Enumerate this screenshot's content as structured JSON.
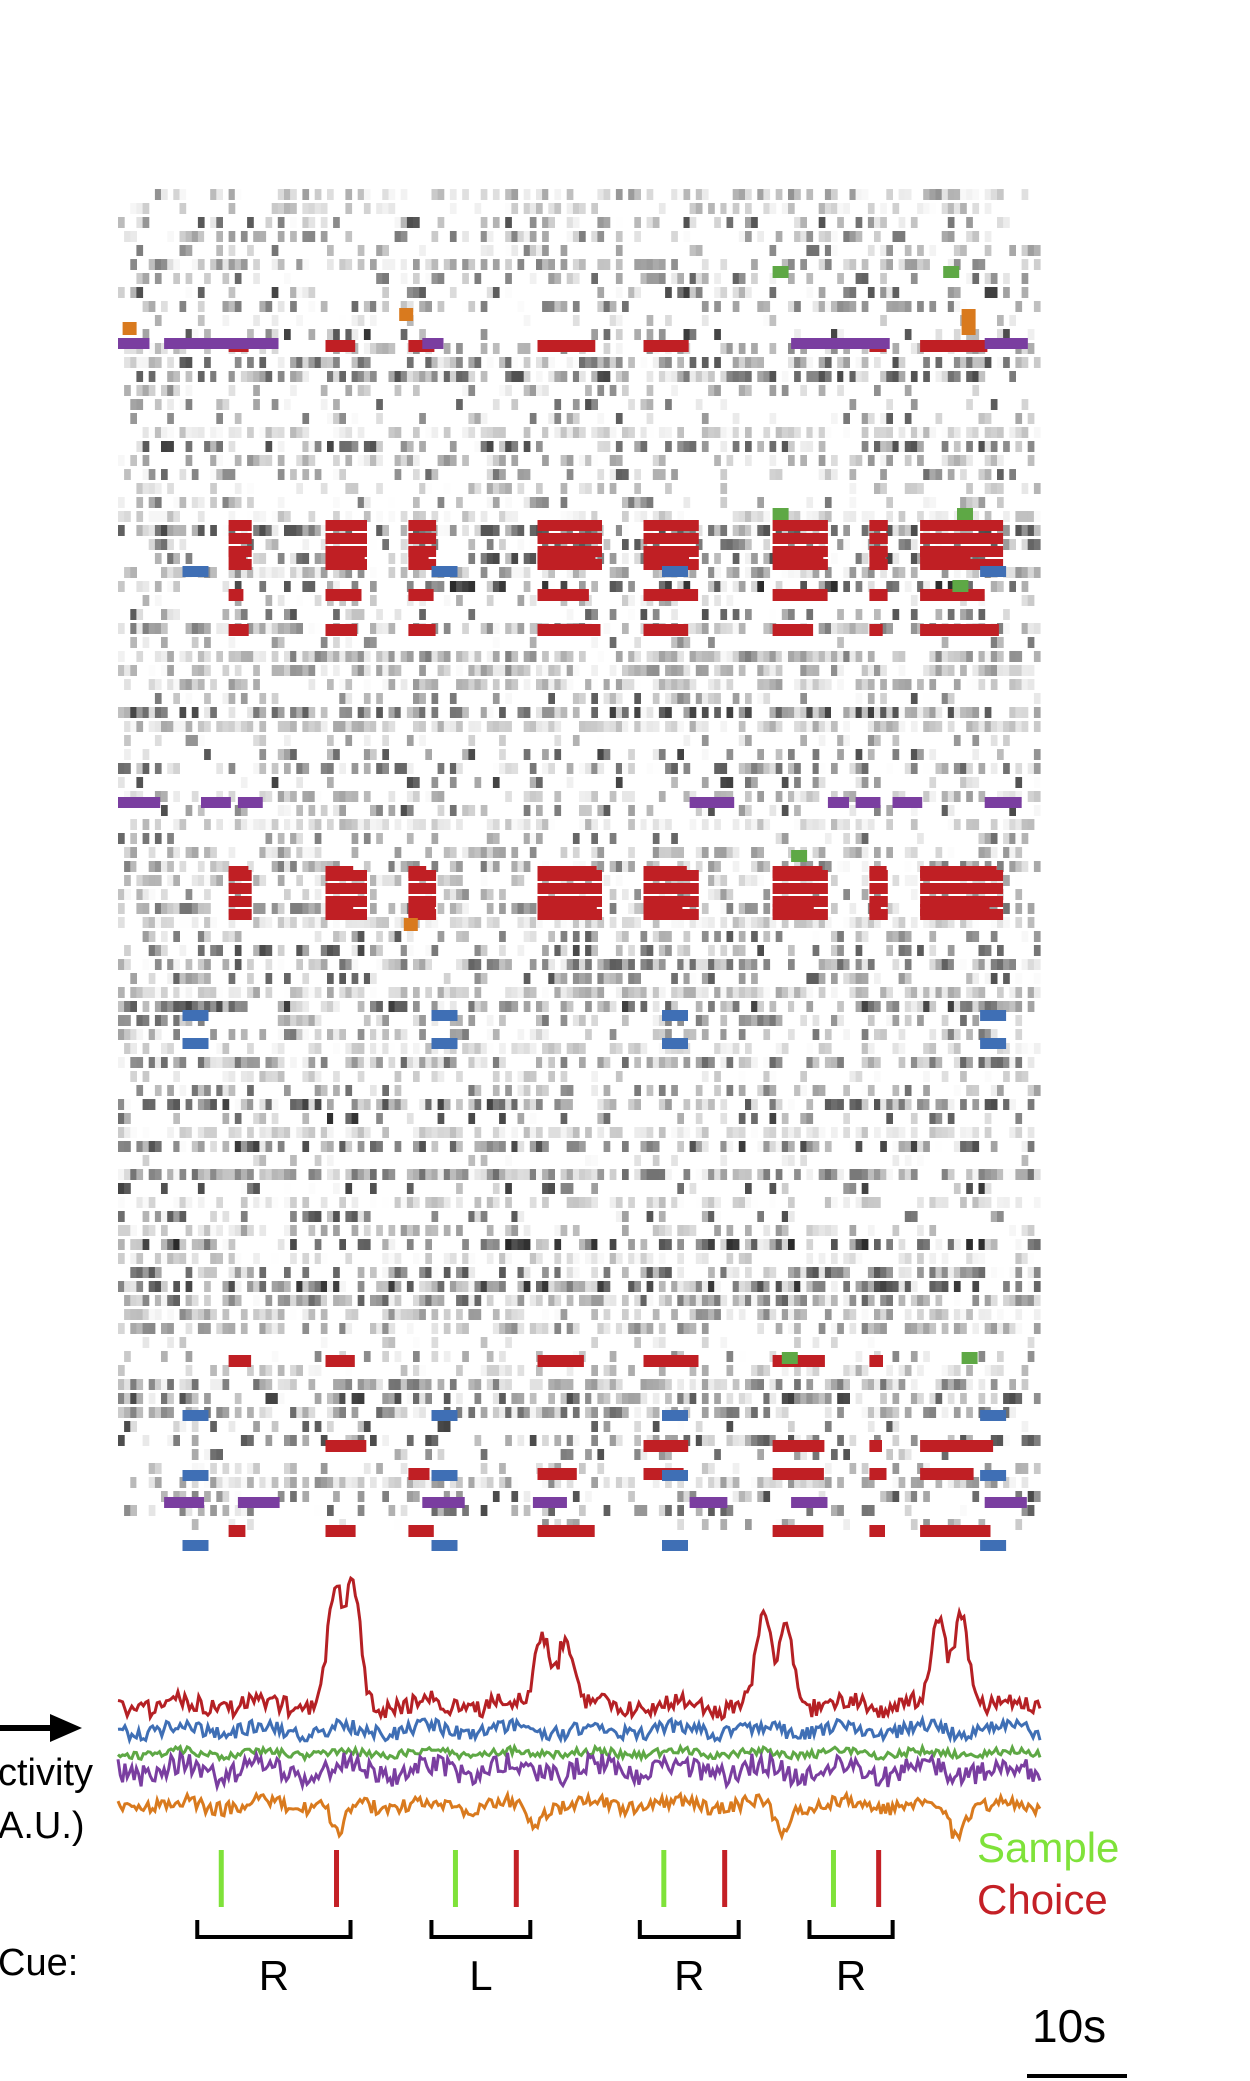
{
  "labels": {
    "activity_line1": "ctivity",
    "activity_line2": "A.U.)",
    "cue_label": "Cue:",
    "sample_label": "Sample",
    "choice_label": "Choice",
    "scale_label": "10s"
  },
  "colors": {
    "sample": "#7fe23a",
    "choice": "#c42026",
    "red_trace": "#b52024",
    "blue_trace": "#3f6fb5",
    "green_trace": "#5ea845",
    "purple_trace": "#7a3ea0",
    "orange_trace": "#d97a1e",
    "raster_red": "#c01f24",
    "raster_blue": "#3f6fb5",
    "raster_purple": "#7a3ea0",
    "raster_green": "#5ea845",
    "raster_orange": "#d97a1e"
  },
  "cues": [
    {
      "label": "R",
      "sample_s": 11.2,
      "choice_s": 23.7
    },
    {
      "label": "L",
      "sample_s": 36.6,
      "choice_s": 43.2
    },
    {
      "label": "R",
      "sample_s": 59.2,
      "choice_s": 65.8
    },
    {
      "label": "R",
      "sample_s": 77.6,
      "choice_s": 82.5
    }
  ]
}
